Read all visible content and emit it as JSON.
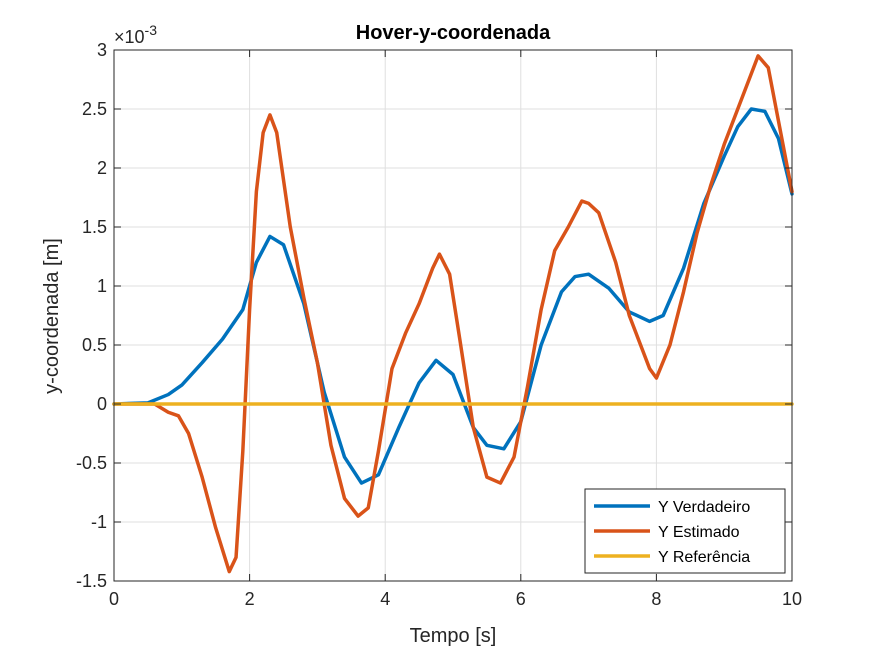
{
  "chart_data": {
    "type": "line",
    "title": "Hover-y-coordenada",
    "xlabel": "Tempo [s]",
    "ylabel": "y-coordenada [m]",
    "y_exponent_label": "×10",
    "y_exponent_power": "-3",
    "xlim": [
      0,
      10
    ],
    "ylim": [
      -1.5,
      3
    ],
    "ylim_display_scale": 0.001,
    "xticks": [
      0,
      2,
      4,
      6,
      8,
      10
    ],
    "xtick_labels": [
      "0",
      "2",
      "4",
      "6",
      "8",
      "10"
    ],
    "yticks": [
      -1.5,
      -1,
      -0.5,
      0,
      0.5,
      1,
      1.5,
      2,
      2.5,
      3
    ],
    "ytick_labels": [
      "-1.5",
      "-1",
      "-0.5",
      "0",
      "0.5",
      "1",
      "1.5",
      "2",
      "2.5",
      "3"
    ],
    "grid": true,
    "legend_position": "bottom-right",
    "series": [
      {
        "name": "Y Verdadeiro",
        "color": "#0072BD",
        "x": [
          0,
          0.5,
          0.8,
          1.0,
          1.3,
          1.6,
          1.9,
          2.1,
          2.3,
          2.5,
          2.8,
          3.1,
          3.4,
          3.65,
          3.9,
          4.2,
          4.5,
          4.75,
          5.0,
          5.3,
          5.5,
          5.75,
          6.0,
          6.3,
          6.6,
          6.8,
          7.0,
          7.3,
          7.6,
          7.9,
          8.1,
          8.4,
          8.7,
          9.0,
          9.2,
          9.4,
          9.6,
          9.8,
          10.0
        ],
        "y": [
          0,
          0.01,
          0.08,
          0.16,
          0.35,
          0.55,
          0.8,
          1.2,
          1.42,
          1.35,
          0.85,
          0.1,
          -0.45,
          -0.67,
          -0.6,
          -0.2,
          0.18,
          0.37,
          0.25,
          -0.2,
          -0.35,
          -0.38,
          -0.15,
          0.5,
          0.95,
          1.08,
          1.1,
          0.98,
          0.78,
          0.7,
          0.75,
          1.15,
          1.7,
          2.1,
          2.35,
          2.5,
          2.48,
          2.25,
          1.78
        ]
      },
      {
        "name": "Y Estimado",
        "color": "#D95319",
        "x": [
          0,
          0.6,
          0.8,
          0.95,
          1.1,
          1.3,
          1.5,
          1.7,
          1.8,
          1.9,
          2.0,
          2.1,
          2.2,
          2.3,
          2.4,
          2.6,
          2.8,
          3.0,
          3.2,
          3.4,
          3.6,
          3.75,
          3.9,
          4.1,
          4.3,
          4.5,
          4.7,
          4.8,
          4.95,
          5.1,
          5.3,
          5.5,
          5.7,
          5.9,
          6.1,
          6.3,
          6.5,
          6.7,
          6.9,
          7.0,
          7.15,
          7.4,
          7.6,
          7.8,
          7.9,
          8.0,
          8.2,
          8.4,
          8.6,
          8.8,
          9.0,
          9.2,
          9.4,
          9.5,
          9.65,
          9.8,
          10.0
        ],
        "y": [
          0,
          0,
          -0.07,
          -0.1,
          -0.25,
          -0.62,
          -1.05,
          -1.42,
          -1.3,
          -0.4,
          0.8,
          1.8,
          2.3,
          2.45,
          2.3,
          1.5,
          0.9,
          0.35,
          -0.35,
          -0.8,
          -0.95,
          -0.88,
          -0.4,
          0.3,
          0.6,
          0.85,
          1.15,
          1.27,
          1.1,
          0.55,
          -0.2,
          -0.62,
          -0.67,
          -0.45,
          0.15,
          0.8,
          1.3,
          1.5,
          1.72,
          1.7,
          1.62,
          1.2,
          0.75,
          0.45,
          0.3,
          0.22,
          0.5,
          0.95,
          1.45,
          1.85,
          2.2,
          2.5,
          2.8,
          2.95,
          2.85,
          2.4,
          1.8
        ]
      },
      {
        "name": "Y Referência",
        "color": "#EDB120",
        "x": [
          0,
          10
        ],
        "y": [
          0,
          0
        ]
      }
    ]
  }
}
